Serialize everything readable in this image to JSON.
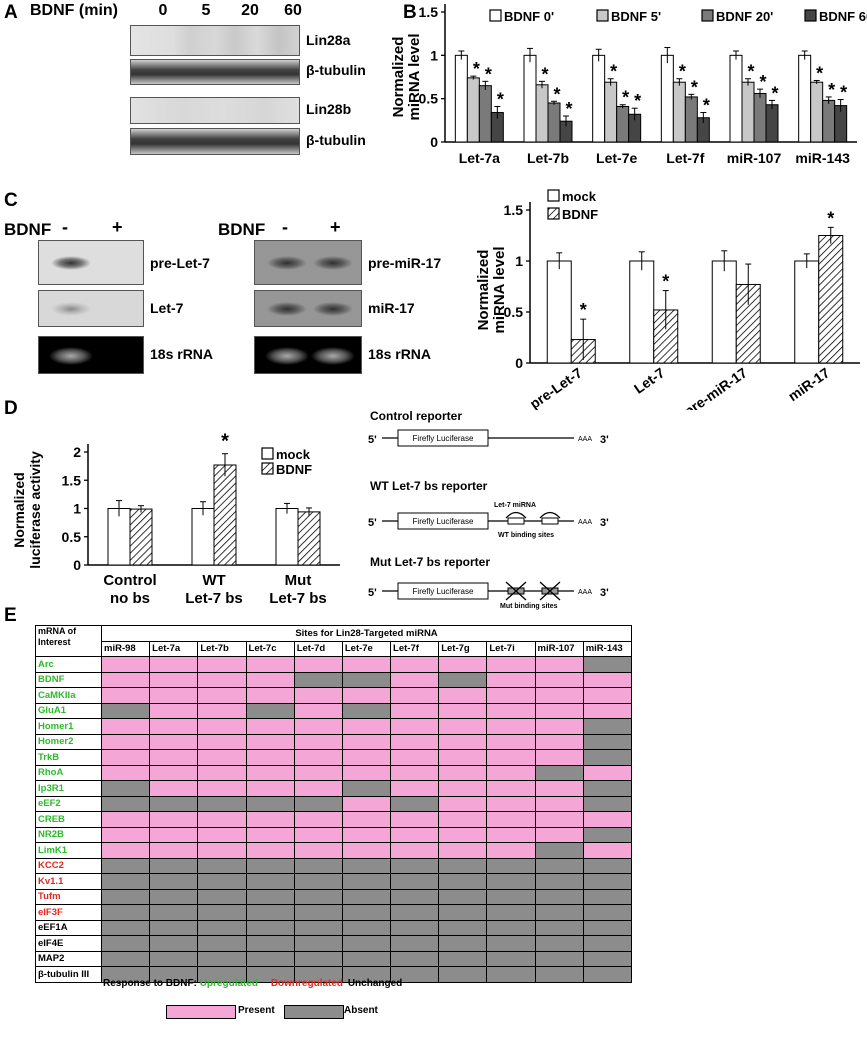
{
  "panels": {
    "A": "A",
    "B": "B",
    "C": "C",
    "D": "D",
    "E": "E"
  },
  "panelA": {
    "treatment_label": "BDNF (min)",
    "timepoints": [
      "0",
      "5",
      "20",
      "60"
    ],
    "blots": [
      "Lin28a",
      "β-tubulin",
      "Lin28b",
      "β-tubulin"
    ]
  },
  "panelB": {
    "chart_data": {
      "type": "bar",
      "categories": [
        "Let-7a",
        "Let-7b",
        "Let-7e",
        "Let-7f",
        "miR-107",
        "miR-143"
      ],
      "series": [
        {
          "name": "BDNF 0'",
          "values": [
            1,
            1,
            1,
            1,
            1,
            1
          ],
          "errors": [
            0.05,
            0.08,
            0.07,
            0.09,
            0.05,
            0.05
          ],
          "color": "#ffffff"
        },
        {
          "name": "BDNF 5'",
          "values": [
            0.74,
            0.66,
            0.69,
            0.69,
            0.69,
            0.69
          ],
          "errors": [
            0.02,
            0.04,
            0.04,
            0.04,
            0.04,
            0.02
          ],
          "color": "#c8c8c8"
        },
        {
          "name": "BDNF 20'",
          "values": [
            0.65,
            0.45,
            0.41,
            0.52,
            0.56,
            0.48
          ],
          "errors": [
            0.05,
            0.02,
            0.02,
            0.03,
            0.05,
            0.04
          ],
          "color": "#7a7a7a"
        },
        {
          "name": "BDNF 60'",
          "values": [
            0.34,
            0.24,
            0.32,
            0.28,
            0.43,
            0.42
          ],
          "errors": [
            0.07,
            0.06,
            0.07,
            0.06,
            0.05,
            0.07
          ],
          "color": "#454545"
        }
      ],
      "significant": [
        false,
        true,
        true,
        true
      ],
      "ylabel": "Normalized miRNA level",
      "yticks": [
        "0",
        "0.5",
        "1",
        "1.5"
      ],
      "ylim": [
        0,
        1.5
      ],
      "legend": "top",
      "star": "*"
    }
  },
  "panelC": {
    "treatment_label": "BDNF",
    "minus": "-",
    "plus": "+",
    "left_blots": [
      "pre-Let-7",
      "Let-7",
      "18s rRNA"
    ],
    "right_blots": [
      "pre-miR-17",
      "miR-17",
      "18s rRNA"
    ],
    "chart_data": {
      "type": "bar",
      "categories": [
        "pre-Let-7",
        "Let-7",
        "pre-miR-17",
        "miR-17"
      ],
      "series": [
        {
          "name": "mock",
          "values": [
            1,
            1,
            1,
            1
          ],
          "errors": [
            0.08,
            0.09,
            0.1,
            0.07
          ]
        },
        {
          "name": "BDNF",
          "values": [
            0.23,
            0.52,
            0.77,
            1.25
          ],
          "errors": [
            0.2,
            0.19,
            0.2,
            0.08
          ]
        }
      ],
      "significant": [
        true,
        true,
        false,
        true
      ],
      "ylabel": "Normalized miRNA level",
      "yticks": [
        "0",
        "0.5",
        "1",
        "1.5"
      ],
      "ylim": [
        0,
        1.5
      ],
      "legend": "top-left",
      "star": "*"
    }
  },
  "panelD": {
    "chart_data": {
      "type": "bar",
      "categories": [
        "Control no bs",
        "WT Let-7 bs",
        "Mut Let-7 bs"
      ],
      "category_lines": [
        [
          "Control",
          "no bs"
        ],
        [
          "WT",
          "Let-7 bs"
        ],
        [
          "Mut",
          "Let-7 bs"
        ]
      ],
      "series": [
        {
          "name": "mock",
          "values": [
            1,
            1,
            1
          ],
          "errors": [
            0.14,
            0.12,
            0.09
          ]
        },
        {
          "name": "BDNF",
          "values": [
            0.99,
            1.77,
            0.94
          ],
          "errors": [
            0.06,
            0.2,
            0.07
          ]
        }
      ],
      "significant": [
        false,
        true,
        false
      ],
      "ylabel": "Normalized luciferase activity",
      "yticks": [
        "0",
        "0.5",
        "1",
        "1.5",
        "2"
      ],
      "ylim": [
        0,
        2
      ],
      "legend": "top-right",
      "star": "*"
    },
    "reporters": [
      {
        "title": "Control reporter",
        "sub": ""
      },
      {
        "title": "WT Let-7 bs reporter",
        "sub": "WT binding sites"
      },
      {
        "title": "Mut Let-7 bs reporter",
        "sub": "Mut binding sites"
      }
    ],
    "five": "5'",
    "three": "3'",
    "polyA": "AAA",
    "gene": "Firefly Luciferase",
    "mirna": "Let-7 miRNA"
  },
  "panelE": {
    "header": "Sites for Lin28-Targeted miRNA",
    "corner": "mRNA of Interest",
    "columns": [
      "miR-98",
      "Let-7a",
      "Let-7b",
      "Let-7c",
      "Let-7d",
      "Let-7e",
      "Let-7f",
      "Let-7g",
      "Let-7i",
      "miR-107",
      "miR-143"
    ],
    "rows": [
      {
        "name": "Arc",
        "resp": "up",
        "cells": [
          1,
          1,
          1,
          1,
          1,
          1,
          1,
          1,
          1,
          1,
          0
        ]
      },
      {
        "name": "BDNF",
        "resp": "up",
        "cells": [
          1,
          1,
          1,
          1,
          0,
          0,
          1,
          0,
          1,
          1,
          1
        ]
      },
      {
        "name": "CaMKIIa",
        "resp": "up",
        "cells": [
          1,
          1,
          1,
          1,
          1,
          1,
          1,
          1,
          1,
          1,
          1
        ]
      },
      {
        "name": "GluA1",
        "resp": "up",
        "cells": [
          0,
          1,
          1,
          0,
          1,
          0,
          1,
          1,
          1,
          1,
          1
        ]
      },
      {
        "name": "Homer1",
        "resp": "up",
        "cells": [
          1,
          1,
          1,
          1,
          1,
          1,
          1,
          1,
          1,
          1,
          0
        ]
      },
      {
        "name": "Homer2",
        "resp": "up",
        "cells": [
          1,
          1,
          1,
          1,
          1,
          1,
          1,
          1,
          1,
          1,
          0
        ]
      },
      {
        "name": "TrkB",
        "resp": "up",
        "cells": [
          1,
          1,
          1,
          1,
          1,
          1,
          1,
          1,
          1,
          1,
          0
        ]
      },
      {
        "name": "RhoA",
        "resp": "up",
        "cells": [
          1,
          1,
          1,
          1,
          1,
          1,
          1,
          1,
          1,
          0,
          1
        ]
      },
      {
        "name": "Ip3R1",
        "resp": "up",
        "cells": [
          0,
          1,
          1,
          1,
          1,
          0,
          1,
          1,
          1,
          1,
          0
        ]
      },
      {
        "name": "eEF2",
        "resp": "up",
        "cells": [
          0,
          0,
          0,
          0,
          0,
          1,
          0,
          1,
          1,
          1,
          0
        ]
      },
      {
        "name": "CREB",
        "resp": "up",
        "cells": [
          1,
          1,
          1,
          1,
          1,
          1,
          1,
          1,
          1,
          1,
          1
        ]
      },
      {
        "name": "NR2B",
        "resp": "up",
        "cells": [
          1,
          1,
          1,
          1,
          1,
          1,
          1,
          1,
          1,
          1,
          0
        ]
      },
      {
        "name": "LimK1",
        "resp": "up",
        "cells": [
          1,
          1,
          1,
          1,
          1,
          1,
          1,
          1,
          1,
          0,
          1
        ]
      },
      {
        "name": "KCC2",
        "resp": "down",
        "cells": [
          0,
          0,
          0,
          0,
          0,
          0,
          0,
          0,
          0,
          0,
          0
        ]
      },
      {
        "name": "Kv1.1",
        "resp": "down",
        "cells": [
          0,
          0,
          0,
          0,
          0,
          0,
          0,
          0,
          0,
          0,
          0
        ]
      },
      {
        "name": "Tufm",
        "resp": "down",
        "cells": [
          0,
          0,
          0,
          0,
          0,
          0,
          0,
          0,
          0,
          0,
          0
        ]
      },
      {
        "name": "eIF3F",
        "resp": "down",
        "cells": [
          0,
          0,
          0,
          0,
          0,
          0,
          0,
          0,
          0,
          0,
          0
        ]
      },
      {
        "name": "eEF1A",
        "resp": "unch",
        "cells": [
          0,
          0,
          0,
          0,
          0,
          0,
          0,
          0,
          0,
          0,
          0
        ]
      },
      {
        "name": "eIF4E",
        "resp": "unch",
        "cells": [
          0,
          0,
          0,
          0,
          0,
          0,
          0,
          0,
          0,
          0,
          0
        ]
      },
      {
        "name": "MAP2",
        "resp": "unch",
        "cells": [
          0,
          0,
          0,
          0,
          0,
          0,
          0,
          0,
          0,
          0,
          0
        ]
      },
      {
        "name": "β-tubulin III",
        "resp": "unch",
        "cells": [
          0,
          0,
          0,
          0,
          0,
          0,
          0,
          0,
          0,
          0,
          0
        ]
      }
    ],
    "legend_response": "Response to BDNF:",
    "legend_up": "Upregulated",
    "legend_down": "Downregulated",
    "legend_unch": "Unchanged",
    "legend_present": "Present",
    "legend_absent": "Absent",
    "colors": {
      "present": "#f4a6d7",
      "absent": "#8c8c8c",
      "up": "#2dba2d",
      "down": "#e8261e"
    }
  }
}
